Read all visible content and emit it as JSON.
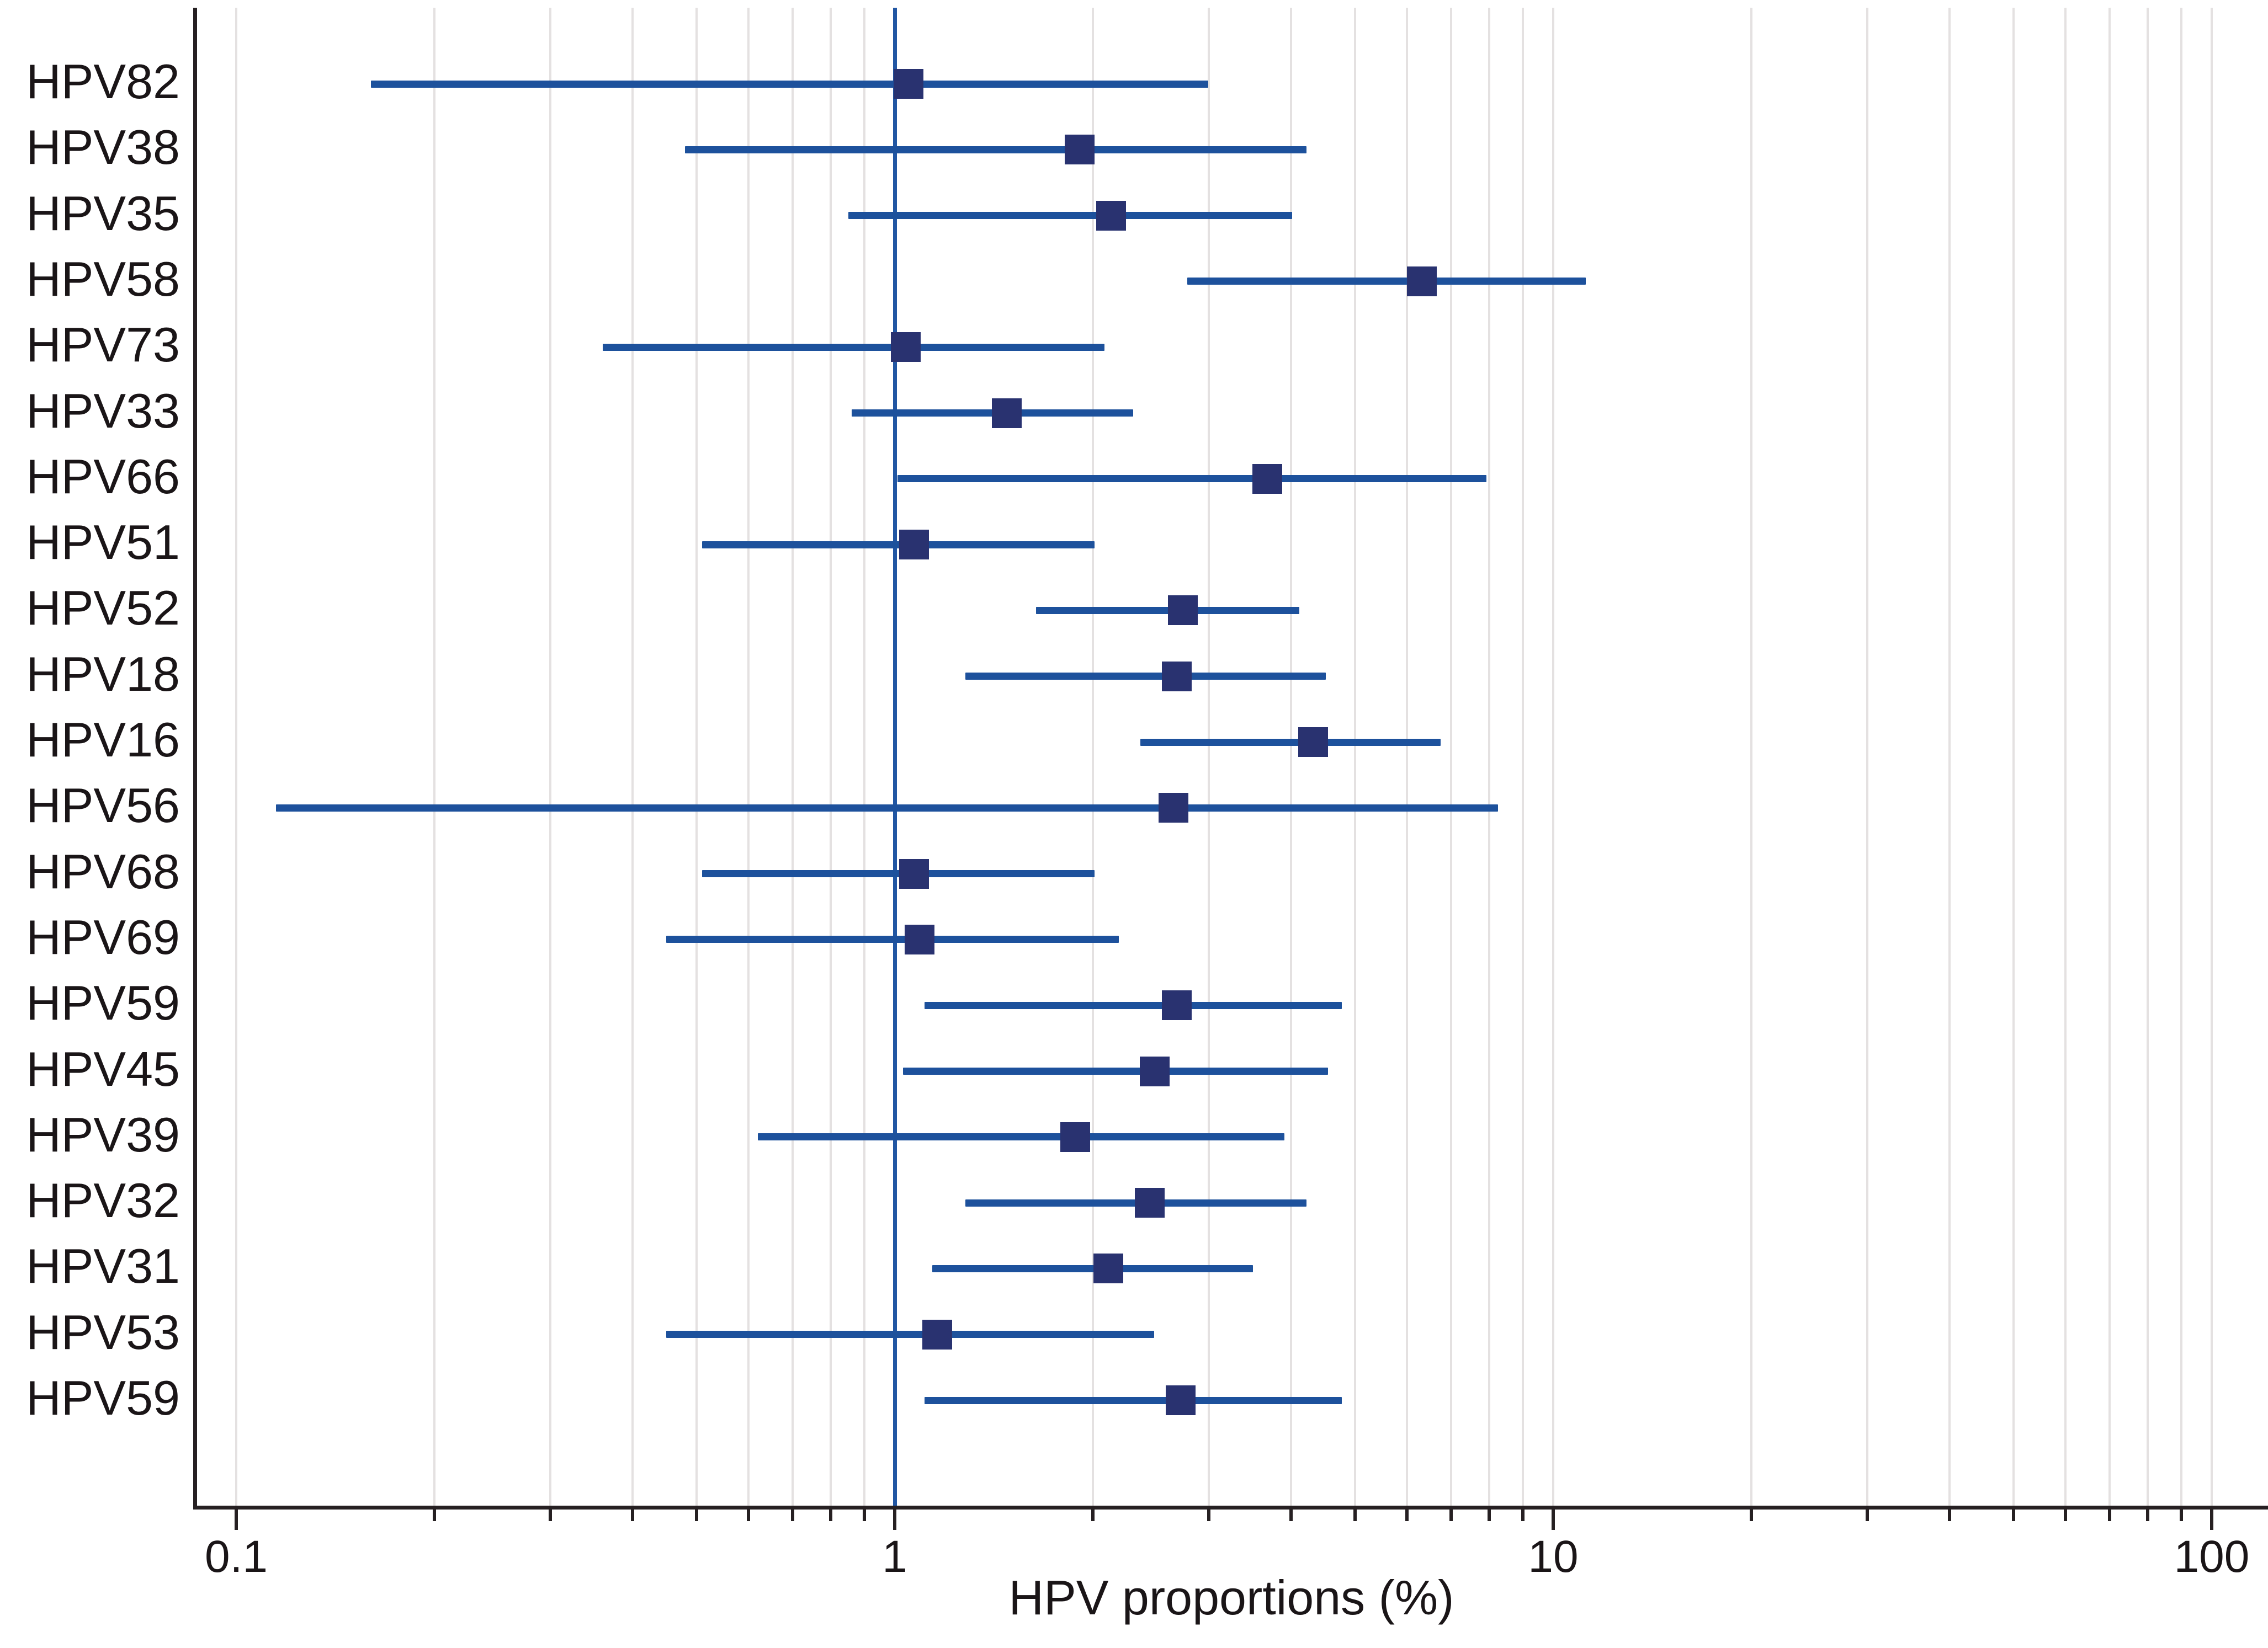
{
  "chart_data": {
    "type": "scatter",
    "subtype": "forest-plot",
    "title": "",
    "xlabel": "HPV proportions (%)",
    "ylabel": "",
    "x_scale": "log10",
    "x_axis_range_approx": [
      0.09,
      117
    ],
    "x_tick_labels": [
      "0.1",
      "1",
      "10",
      "100"
    ],
    "x_major_ticks": [
      0.1,
      1,
      10,
      100
    ],
    "x_minor_ticks": [
      0.2,
      0.3,
      0.4,
      0.5,
      0.6,
      0.7,
      0.8,
      0.9,
      2,
      3,
      4,
      5,
      6,
      7,
      8,
      9,
      20,
      30,
      40,
      50,
      60,
      70,
      80,
      90
    ],
    "gridlines": [
      0.1,
      0.2,
      0.3,
      0.4,
      0.5,
      0.6,
      0.7,
      0.8,
      0.9,
      2,
      3,
      4,
      5,
      6,
      7,
      8,
      9,
      10,
      20,
      30,
      40,
      50,
      60,
      70,
      80,
      90,
      100
    ],
    "reference_line_x": 1,
    "grid": true,
    "legend": false,
    "rows": [
      {
        "label": "HPV82",
        "est": 1.05,
        "lo": 0.16,
        "hi": 2.99
      },
      {
        "label": "HPV38",
        "est": 1.91,
        "lo": 0.48,
        "hi": 4.22
      },
      {
        "label": "HPV35",
        "est": 2.13,
        "lo": 0.85,
        "hi": 4.01
      },
      {
        "label": "HPV58",
        "est": 6.32,
        "lo": 2.78,
        "hi": 11.2
      },
      {
        "label": "HPV73",
        "est": 1.04,
        "lo": 0.36,
        "hi": 2.08
      },
      {
        "label": "HPV33",
        "est": 1.48,
        "lo": 0.86,
        "hi": 2.3
      },
      {
        "label": "HPV66",
        "est": 3.68,
        "lo": 1.01,
        "hi": 7.92
      },
      {
        "label": "HPV51",
        "est": 1.07,
        "lo": 0.51,
        "hi": 2.01
      },
      {
        "label": "HPV52",
        "est": 2.74,
        "lo": 1.64,
        "hi": 4.12
      },
      {
        "label": "HPV18",
        "est": 2.68,
        "lo": 1.28,
        "hi": 4.51
      },
      {
        "label": "HPV16",
        "est": 4.32,
        "lo": 2.36,
        "hi": 6.74
      },
      {
        "label": "HPV56",
        "est": 2.65,
        "lo": 0.115,
        "hi": 8.25
      },
      {
        "label": "HPV68",
        "est": 1.07,
        "lo": 0.51,
        "hi": 2.01
      },
      {
        "label": "HPV69",
        "est": 1.09,
        "lo": 0.45,
        "hi": 2.19
      },
      {
        "label": "HPV59",
        "est": 2.68,
        "lo": 1.11,
        "hi": 4.78
      },
      {
        "label": "HPV45",
        "est": 2.48,
        "lo": 1.03,
        "hi": 4.55
      },
      {
        "label": "HPV39",
        "est": 1.88,
        "lo": 0.62,
        "hi": 3.91
      },
      {
        "label": "HPV32",
        "est": 2.44,
        "lo": 1.28,
        "hi": 4.22
      },
      {
        "label": "HPV31",
        "est": 2.11,
        "lo": 1.14,
        "hi": 3.5
      },
      {
        "label": "HPV53",
        "est": 1.16,
        "lo": 0.45,
        "hi": 2.48
      },
      {
        "label": "HPV59",
        "est": 2.72,
        "lo": 1.11,
        "hi": 4.78
      }
    ]
  },
  "colors": {
    "background": "#ffffff",
    "gridline": "#e4e1e1",
    "axis": "#262022",
    "text": "#1a1517",
    "ci_line": "#1d519c",
    "marker": "#293270",
    "reference_line": "#2156a3"
  }
}
